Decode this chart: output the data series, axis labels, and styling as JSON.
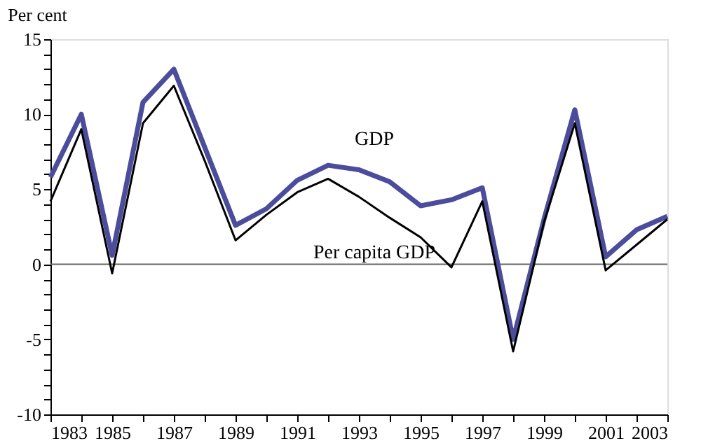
{
  "chart_data": {
    "type": "line",
    "ylabel": "Per cent",
    "x": [
      1983,
      1984,
      1985,
      1986,
      1987,
      1988,
      1989,
      1990,
      1991,
      1992,
      1993,
      1994,
      1995,
      1996,
      1997,
      1998,
      1999,
      2000,
      2001,
      2002,
      2003
    ],
    "series": [
      {
        "name": "GDP",
        "color": "#4c4c9c",
        "values": [
          5.8,
          10.0,
          0.6,
          10.8,
          13.0,
          7.8,
          2.6,
          3.7,
          5.6,
          6.6,
          6.3,
          5.5,
          3.9,
          4.3,
          5.1,
          -5.0,
          3.0,
          10.3,
          0.5,
          2.3,
          3.2
        ]
      },
      {
        "name": "Per capita GDP",
        "color": "#000000",
        "values": [
          4.2,
          9.0,
          -0.6,
          9.4,
          11.9,
          6.9,
          1.6,
          3.3,
          4.8,
          5.7,
          4.5,
          3.1,
          1.8,
          -0.2,
          4.2,
          -5.8,
          2.8,
          9.4,
          -0.4,
          1.3,
          3.0
        ]
      }
    ],
    "xlim": [
      1983,
      2003
    ],
    "xticks": [
      1983,
      {
        "value": 1984,
        "label": null
      },
      1985,
      {
        "value": 1986,
        "label": null
      },
      1987,
      {
        "value": 1988,
        "label": null
      },
      1989,
      {
        "value": 1990,
        "label": null
      },
      1991,
      {
        "value": 1992,
        "label": null
      },
      1993,
      {
        "value": 1994,
        "label": null
      },
      1995,
      {
        "value": 1996,
        "label": null
      },
      1997,
      {
        "value": 1998,
        "label": null
      },
      1999,
      {
        "value": 2000,
        "label": null
      },
      2001,
      {
        "value": 2002,
        "label": null
      },
      2003
    ],
    "ylim": [
      -10,
      15
    ],
    "yticks": [
      -10,
      {
        "value": -9,
        "label": null
      },
      {
        "value": -8,
        "label": null
      },
      {
        "value": -7,
        "label": null
      },
      {
        "value": -6,
        "label": null
      },
      -5,
      {
        "value": -4,
        "label": null
      },
      {
        "value": -3,
        "label": null
      },
      {
        "value": -2,
        "label": null
      },
      {
        "value": -1,
        "label": null
      },
      0,
      {
        "value": 1,
        "label": null
      },
      {
        "value": 2,
        "label": null
      },
      {
        "value": 3,
        "label": null
      },
      {
        "value": 4,
        "label": null
      },
      5,
      {
        "value": 6,
        "label": null
      },
      {
        "value": 7,
        "label": null
      },
      {
        "value": 8,
        "label": null
      },
      {
        "value": 9,
        "label": null
      },
      10,
      {
        "value": 11,
        "label": null
      },
      {
        "value": 12,
        "label": null
      },
      {
        "value": 13,
        "label": null
      },
      {
        "value": 14,
        "label": null
      },
      15
    ],
    "ref_lines": [
      {
        "axis": "y",
        "value": 0,
        "color": "#666666"
      }
    ],
    "grid": false,
    "legend": false,
    "marker": "none",
    "line_style": "solid"
  }
}
